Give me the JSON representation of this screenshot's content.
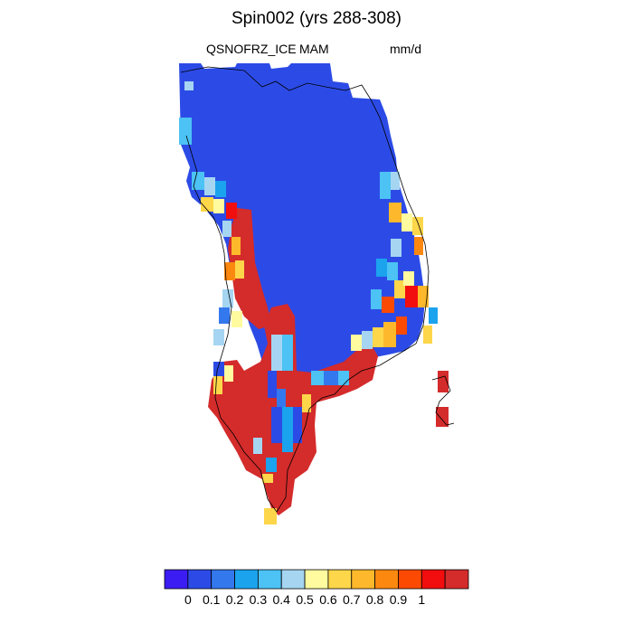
{
  "title": "Spin002 (yrs 288-308)",
  "variable": "QSNOFRZ_ICE",
  "season": "MAM",
  "units": "mm/d",
  "colorbar": {
    "colors": [
      "#3b1cf2",
      "#2c4be6",
      "#3478ee",
      "#1ba3ee",
      "#4cc2f5",
      "#a6d5f2",
      "#fffb9e",
      "#fdd64a",
      "#fdb92b",
      "#fc8810",
      "#fc4a02",
      "#f20e0e",
      "#d42b2b"
    ],
    "tick_labels": [
      "0",
      "0.1",
      "0.2",
      "0.3",
      "0.4",
      "0.5",
      "0.6",
      "0.7",
      "0.8",
      "0.9",
      "1"
    ]
  },
  "colors": {
    "ice_interior": "#2c4be6",
    "high_melt": "#d42b2b",
    "coastline": "#000000"
  }
}
